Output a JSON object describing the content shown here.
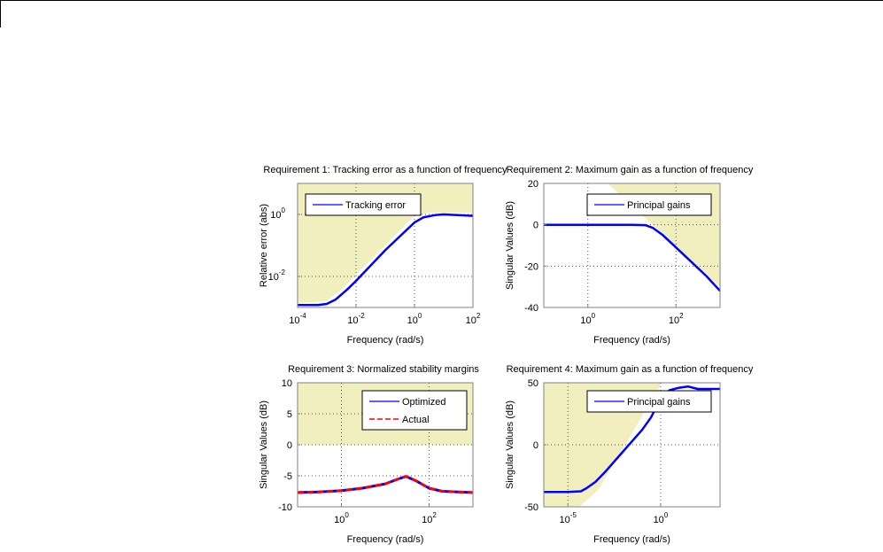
{
  "chart_data": [
    {
      "type": "line",
      "title": "Requirement 1: Tracking error as a function of frequency",
      "xlabel": "Frequency (rad/s)",
      "ylabel": "Relative error (abs)",
      "xscale": "log",
      "yscale": "log",
      "xlim": [
        0.0001,
        100
      ],
      "ylim": [
        0.001,
        10
      ],
      "xticks": [
        {
          "exp": "-4",
          "value": 0.0001
        },
        {
          "exp": "-2",
          "value": 0.01
        },
        {
          "exp": "0",
          "value": 1
        },
        {
          "exp": "2",
          "value": 100
        }
      ],
      "yticks": [
        {
          "exp": "0",
          "value": 1
        },
        {
          "exp": "-2",
          "value": 0.01
        }
      ],
      "grid": true,
      "legend": {
        "position": "top-left",
        "entries": [
          {
            "label": "Tracking error",
            "color": "#0000ff",
            "style": "solid"
          }
        ]
      },
      "shaded_region": {
        "side": "above",
        "color": "#f2efbf",
        "boundary": {
          "x": [
            0.0001,
            0.001,
            0.003,
            1,
            3,
            100
          ],
          "y": [
            0.0014,
            0.0016,
            0.0035,
            0.9,
            1.15,
            1.15
          ]
        }
      },
      "series": [
        {
          "name": "Tracking error",
          "color": "#0000ff",
          "x": [
            0.0001,
            0.0005,
            0.001,
            0.002,
            0.005,
            0.01,
            0.1,
            1,
            2,
            5,
            10,
            30,
            100
          ],
          "y": [
            0.0012,
            0.0012,
            0.0013,
            0.0018,
            0.0038,
            0.0072,
            0.07,
            0.55,
            0.8,
            0.95,
            1.0,
            0.95,
            0.9
          ]
        }
      ]
    },
    {
      "type": "line",
      "title": "Requirement 2: Maximum gain as a function of frequency",
      "xlabel": "Frequency (rad/s)",
      "ylabel": "Singular Values (dB)",
      "xscale": "log",
      "xlim": [
        0.1,
        1000
      ],
      "ylim": [
        -40,
        20
      ],
      "xticks": [
        {
          "exp": "0",
          "value": 1
        },
        {
          "exp": "2",
          "value": 100
        }
      ],
      "yticks": [
        {
          "label": "20",
          "value": 20
        },
        {
          "label": "0",
          "value": 0
        },
        {
          "label": "-20",
          "value": -20
        },
        {
          "label": "-40",
          "value": -40
        }
      ],
      "grid": true,
      "legend": {
        "position": "top-right",
        "entries": [
          {
            "label": "Principal gains",
            "color": "#0000ff",
            "style": "solid"
          }
        ]
      },
      "shaded_region": {
        "side": "above",
        "color": "#f2efbf",
        "boundary": {
          "x": [
            2.8,
            1000
          ],
          "y": [
            20,
            -30
          ]
        }
      },
      "series": [
        {
          "name": "Principal gains",
          "color": "#0000ff",
          "x": [
            0.1,
            1,
            10,
            20,
            30,
            50,
            100,
            200,
            500,
            1000
          ],
          "y": [
            0,
            0,
            0,
            -0.2,
            -1.5,
            -5,
            -11,
            -17,
            -25,
            -32
          ]
        }
      ]
    },
    {
      "type": "line",
      "title": "Requirement 3: Normalized stability margins",
      "xlabel": "Frequency (rad/s)",
      "ylabel": "Singular Values (dB)",
      "xscale": "log",
      "xlim": [
        0.1,
        1000
      ],
      "ylim": [
        -10,
        10
      ],
      "xticks": [
        {
          "exp": "0",
          "value": 1
        },
        {
          "exp": "2",
          "value": 100
        }
      ],
      "yticks": [
        {
          "label": "10",
          "value": 10
        },
        {
          "label": "5",
          "value": 5
        },
        {
          "label": "0",
          "value": 0
        },
        {
          "label": "-5",
          "value": -5
        },
        {
          "label": "-10",
          "value": -10
        }
      ],
      "grid": true,
      "legend": {
        "position": "top-right",
        "entries": [
          {
            "label": "Optimized",
            "color": "#0000ff",
            "style": "solid"
          },
          {
            "label": "Actual",
            "color": "#ff0000",
            "style": "dashed"
          }
        ]
      },
      "shaded_region": {
        "side": "above",
        "color": "#f2efbf",
        "boundary": {
          "x": [
            0.1,
            1000
          ],
          "y": [
            0,
            0
          ]
        }
      },
      "series": [
        {
          "name": "Optimized",
          "color": "#0000ff",
          "x": [
            0.1,
            0.3,
            1,
            3,
            10,
            20,
            30,
            50,
            100,
            200,
            1000
          ],
          "y": [
            -7.7,
            -7.6,
            -7.4,
            -7.0,
            -6.3,
            -5.5,
            -5.1,
            -5.8,
            -7.0,
            -7.5,
            -7.7
          ]
        },
        {
          "name": "Actual",
          "color": "#ff0000",
          "x": [
            0.1,
            0.3,
            1,
            3,
            10,
            20,
            30,
            50,
            100,
            200,
            1000
          ],
          "y": [
            -7.7,
            -7.6,
            -7.4,
            -7.0,
            -6.3,
            -5.5,
            -5.1,
            -5.8,
            -7.0,
            -7.5,
            -7.7
          ]
        }
      ]
    },
    {
      "type": "line",
      "title": "Requirement 4: Maximum gain as a function of frequency",
      "xlabel": "Frequency (rad/s)",
      "ylabel": "Singular Values (dB)",
      "xscale": "log",
      "xlim": [
        5e-07,
        1600
      ],
      "ylim": [
        -50,
        50
      ],
      "xticks": [
        {
          "exp": "-5",
          "value": 1e-05
        },
        {
          "exp": "0",
          "value": 1
        }
      ],
      "yticks": [
        {
          "label": "50",
          "value": 50
        },
        {
          "label": "0",
          "value": 0
        },
        {
          "label": "-50",
          "value": -50
        }
      ],
      "grid": true,
      "legend": {
        "position": "top-right",
        "entries": [
          {
            "label": "Principal gains",
            "color": "#0000ff",
            "style": "solid"
          }
        ]
      },
      "shaded_region": {
        "side": "above",
        "color": "#f2efbf",
        "boundary": {
          "x": [
            4e-05,
            0.0004,
            1.2
          ],
          "y": [
            -50,
            -37,
            50
          ]
        }
      },
      "series": [
        {
          "name": "Principal gains",
          "color": "#0000ff",
          "x": [
            5e-07,
            1e-05,
            5e-05,
            0.0001,
            0.0003,
            0.001,
            0.01,
            0.1,
            0.3,
            1,
            3,
            10,
            30,
            100,
            1600
          ],
          "y": [
            -38,
            -38,
            -37.5,
            -35,
            -30,
            -22,
            -5,
            12,
            22,
            37,
            44,
            46,
            47,
            45,
            45
          ]
        }
      ]
    }
  ],
  "figure": {
    "background": "#ffffff",
    "axes_color": "#808080",
    "grid_color": "#555555"
  }
}
